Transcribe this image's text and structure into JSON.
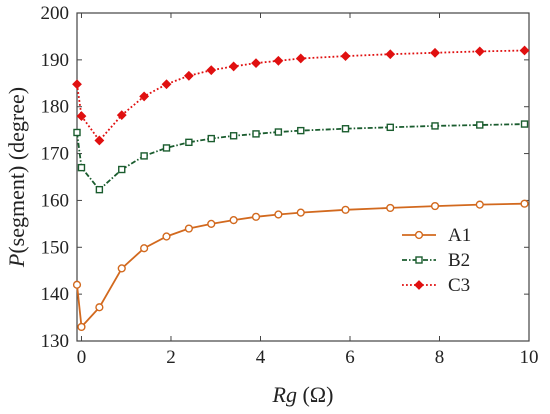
{
  "chart_data": {
    "type": "line",
    "xlabel": {
      "italic": "Rg",
      "rest": " (Ω)"
    },
    "ylabel": {
      "italic": "P",
      "rest": "(segment) (degree)"
    },
    "xlim": [
      -0.1,
      10
    ],
    "ylim": [
      130,
      200
    ],
    "xticks": [
      0,
      2,
      4,
      6,
      8,
      10
    ],
    "yticks": [
      130,
      140,
      150,
      160,
      170,
      180,
      190,
      200
    ],
    "grid": false,
    "legend_position": "right",
    "series": [
      {
        "name": "A1",
        "color": "#d2691e",
        "marker": "circle",
        "dash": "solid",
        "x": [
          -0.1,
          0,
          0.4,
          0.9,
          1.4,
          1.9,
          2.4,
          2.9,
          3.4,
          3.9,
          4.4,
          4.9,
          5.9,
          6.9,
          7.9,
          8.9,
          9.9
        ],
        "y": [
          142.0,
          133.0,
          137.2,
          145.5,
          149.8,
          152.3,
          154.0,
          155.0,
          155.8,
          156.5,
          157.0,
          157.4,
          158.0,
          158.4,
          158.8,
          159.1,
          159.3
        ]
      },
      {
        "name": "B2",
        "color": "#1a5c2e",
        "marker": "square",
        "dash": "dashdot",
        "x": [
          -0.1,
          0,
          0.4,
          0.9,
          1.4,
          1.9,
          2.4,
          2.9,
          3.4,
          3.9,
          4.4,
          4.9,
          5.9,
          6.9,
          7.9,
          8.9,
          9.9
        ],
        "y": [
          174.5,
          167.0,
          162.3,
          166.6,
          169.5,
          171.2,
          172.4,
          173.2,
          173.8,
          174.2,
          174.6,
          174.9,
          175.3,
          175.6,
          175.9,
          176.1,
          176.3
        ]
      },
      {
        "name": "C3",
        "color": "#e01010",
        "marker": "diamond",
        "dash": "dotted",
        "x": [
          -0.1,
          0,
          0.4,
          0.9,
          1.4,
          1.9,
          2.4,
          2.9,
          3.4,
          3.9,
          4.4,
          4.9,
          5.9,
          6.9,
          7.9,
          8.9,
          9.9
        ],
        "y": [
          184.8,
          178.0,
          172.8,
          178.2,
          182.2,
          184.8,
          186.6,
          187.8,
          188.6,
          189.3,
          189.8,
          190.3,
          190.8,
          191.2,
          191.5,
          191.8,
          192.0
        ]
      }
    ]
  }
}
